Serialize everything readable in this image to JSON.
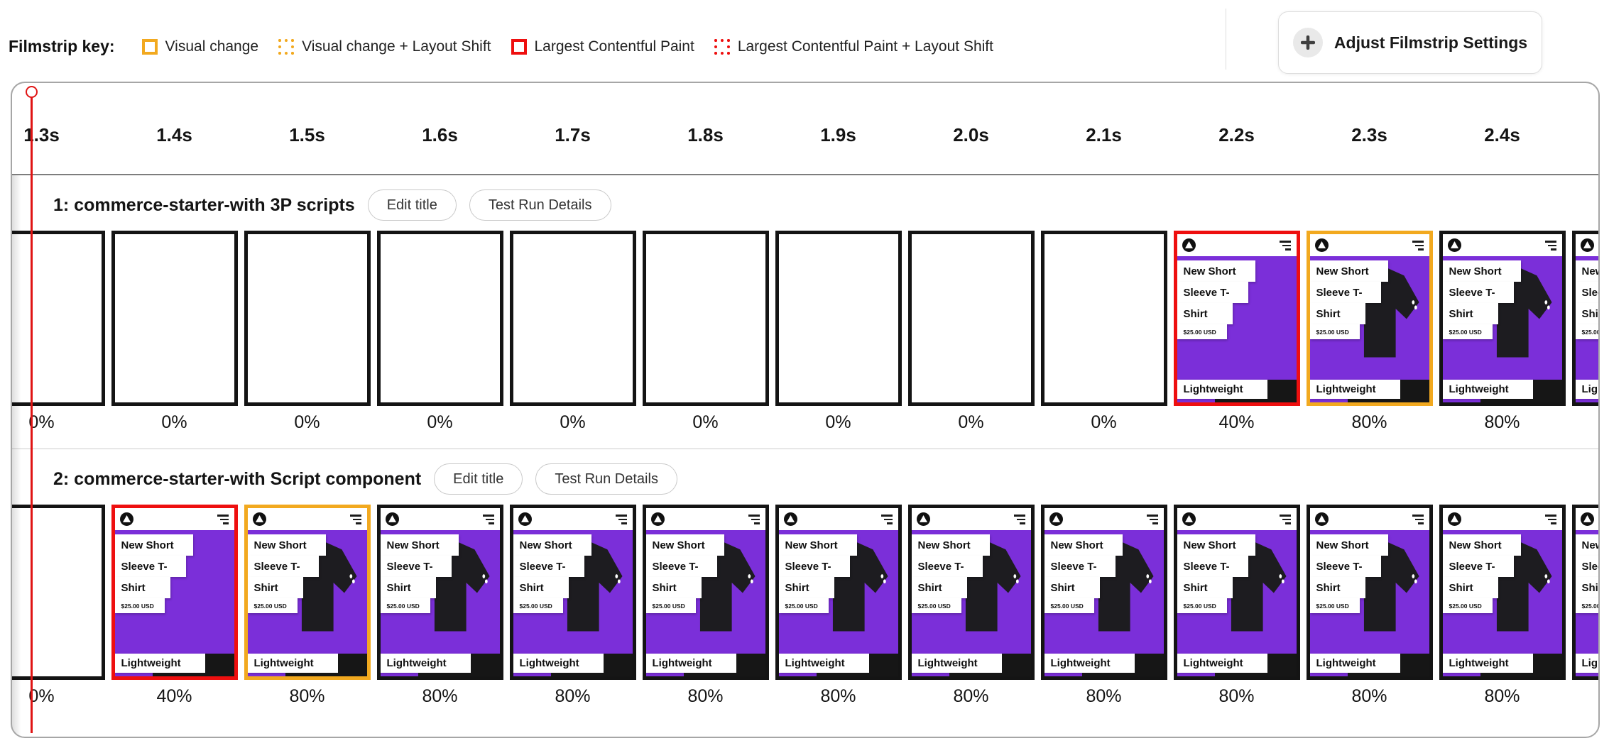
{
  "legend": {
    "title": "Filmstrip key:",
    "items": [
      {
        "label": "Visual change",
        "color": "#f2a91f",
        "border_style": "solid"
      },
      {
        "label": "Visual change + Layout Shift",
        "color": "#f2a91f",
        "border_style": "dotted"
      },
      {
        "label": "Largest Contentful Paint",
        "color": "#ee0f0f",
        "border_style": "solid"
      },
      {
        "label": "Largest Contentful Paint + Layout Shift",
        "color": "#ee0f0f",
        "border_style": "dotted"
      }
    ]
  },
  "settings_button": {
    "label": "Adjust Filmstrip Settings",
    "icon": "plus-icon"
  },
  "timeline": {
    "ticks": [
      "1.3s",
      "1.4s",
      "1.5s",
      "1.6s",
      "1.7s",
      "1.8s",
      "1.9s",
      "2.0s",
      "2.1s",
      "2.2s",
      "2.3s",
      "2.4s"
    ]
  },
  "colors": {
    "visual_change": "#f2a91f",
    "largest_contentful_paint": "#ee0f0f",
    "frame_border": "#141414",
    "thumbnail_purple": "#7b2fd9",
    "playhead_red": "#e01414"
  },
  "thumbnail": {
    "logo_icon": "acme-logo-icon",
    "menu_icon": "hamburger-menu-icon",
    "title_line1": "New Short",
    "title_line2": "Sleeve T-",
    "title_line3": "Shirt",
    "price": "$25.00 USD",
    "variant": "Lightweight"
  },
  "rows": [
    {
      "title": "1: commerce-starter-with 3P scripts",
      "edit_button": "Edit title",
      "details_button": "Test Run Details",
      "frames": [
        {
          "time": "1.3s",
          "progress": "0%",
          "content": "blank",
          "marker": "none"
        },
        {
          "time": "1.4s",
          "progress": "0%",
          "content": "blank",
          "marker": "none"
        },
        {
          "time": "1.5s",
          "progress": "0%",
          "content": "blank",
          "marker": "none"
        },
        {
          "time": "1.6s",
          "progress": "0%",
          "content": "blank",
          "marker": "none"
        },
        {
          "time": "1.7s",
          "progress": "0%",
          "content": "blank",
          "marker": "none"
        },
        {
          "time": "1.8s",
          "progress": "0%",
          "content": "blank",
          "marker": "none"
        },
        {
          "time": "1.9s",
          "progress": "0%",
          "content": "blank",
          "marker": "none"
        },
        {
          "time": "2.0s",
          "progress": "0%",
          "content": "blank",
          "marker": "none"
        },
        {
          "time": "2.1s",
          "progress": "0%",
          "content": "blank",
          "marker": "none"
        },
        {
          "time": "2.2s",
          "progress": "40%",
          "content": "partial",
          "marker": "lcp"
        },
        {
          "time": "2.3s",
          "progress": "80%",
          "content": "full",
          "marker": "visual-change"
        },
        {
          "time": "2.4s",
          "progress": "80%",
          "content": "full",
          "marker": "none"
        },
        {
          "time": "",
          "progress": "",
          "content": "full",
          "marker": "none"
        }
      ]
    },
    {
      "title": "2: commerce-starter-with Script component",
      "edit_button": "Edit title",
      "details_button": "Test Run Details",
      "frames": [
        {
          "time": "1.3s",
          "progress": "0%",
          "content": "blank",
          "marker": "none"
        },
        {
          "time": "1.4s",
          "progress": "40%",
          "content": "partial",
          "marker": "lcp"
        },
        {
          "time": "1.5s",
          "progress": "80%",
          "content": "full",
          "marker": "visual-change"
        },
        {
          "time": "1.6s",
          "progress": "80%",
          "content": "full",
          "marker": "none"
        },
        {
          "time": "1.7s",
          "progress": "80%",
          "content": "full",
          "marker": "none"
        },
        {
          "time": "1.8s",
          "progress": "80%",
          "content": "full",
          "marker": "none"
        },
        {
          "time": "1.9s",
          "progress": "80%",
          "content": "full",
          "marker": "none"
        },
        {
          "time": "2.0s",
          "progress": "80%",
          "content": "full",
          "marker": "none"
        },
        {
          "time": "2.1s",
          "progress": "80%",
          "content": "full",
          "marker": "none"
        },
        {
          "time": "2.2s",
          "progress": "80%",
          "content": "full",
          "marker": "none"
        },
        {
          "time": "2.3s",
          "progress": "80%",
          "content": "full",
          "marker": "none"
        },
        {
          "time": "2.4s",
          "progress": "80%",
          "content": "full",
          "marker": "none"
        },
        {
          "time": "",
          "progress": "",
          "content": "full",
          "marker": "none"
        }
      ]
    }
  ]
}
